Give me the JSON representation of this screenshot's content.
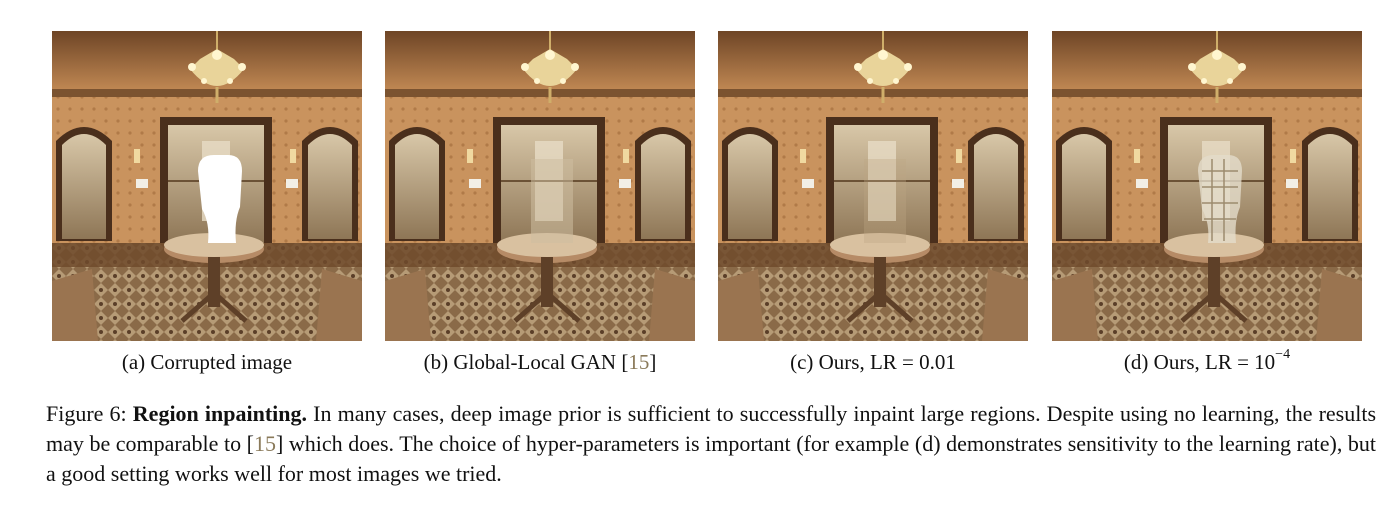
{
  "panels": [
    {
      "id": "a",
      "caption": "(a) Corrupted image",
      "variant": "corrupted"
    },
    {
      "id": "b",
      "caption_pre": "(b) Global-Local GAN [",
      "caption_cite": "15",
      "caption_post": "]",
      "variant": "gan"
    },
    {
      "id": "c",
      "caption": "(c) Ours, LR = 0.01",
      "variant": "ours-good"
    },
    {
      "id": "d",
      "caption_pre": "(d) Ours, LR = 10",
      "caption_sup": "−4",
      "variant": "ours-bad"
    }
  ],
  "caption": {
    "label": "Figure 6:",
    "title": "Region inpainting.",
    "line1_rest": "In many cases, deep image prior is sufficient to successfully inpaint large regions. Despite",
    "line2_pre": "using no learning, the results may be comparable to [",
    "line2_cite": "15",
    "line2_post": "] which does. The choice of hyper-parameters is important (for",
    "line3": "example (d) demonstrates sensitivity to the learning rate), but a good setting works well for most images we tried."
  },
  "colors": {
    "cite": "#8a7a5a",
    "wall": "#c9935e",
    "ceiling": "#a8703e",
    "floor": "#7a5a3a",
    "mirror": "#b9a78c",
    "mask": "#ffffff"
  },
  "icons": [
    "chandelier-icon",
    "round-table-icon",
    "mirror-doorway-icon",
    "wall-sconce-icon"
  ]
}
